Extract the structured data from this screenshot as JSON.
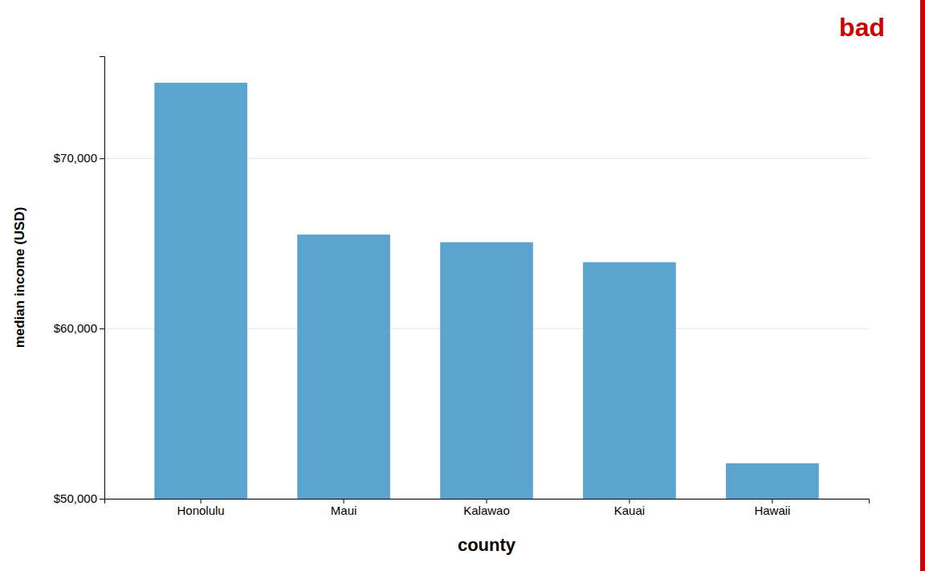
{
  "chart_data": {
    "type": "bar",
    "categories": [
      "Honolulu",
      "Maui",
      "Kalawao",
      "Kauai",
      "Hawaii"
    ],
    "values": [
      74440,
      65521,
      65071,
      63897,
      52084
    ],
    "color": "#5BA4CF",
    "xlabel": "county",
    "ylabel": "median income (USD)",
    "ylim": [
      50000,
      76000
    ],
    "yticks": [
      {
        "value": 50000,
        "label": "$50,000"
      },
      {
        "value": 60000,
        "label": "$60,000"
      },
      {
        "value": 70000,
        "label": "$70,000"
      }
    ],
    "grid": true,
    "annotations": [
      {
        "text": "bad",
        "color": "#cc0000"
      }
    ]
  }
}
